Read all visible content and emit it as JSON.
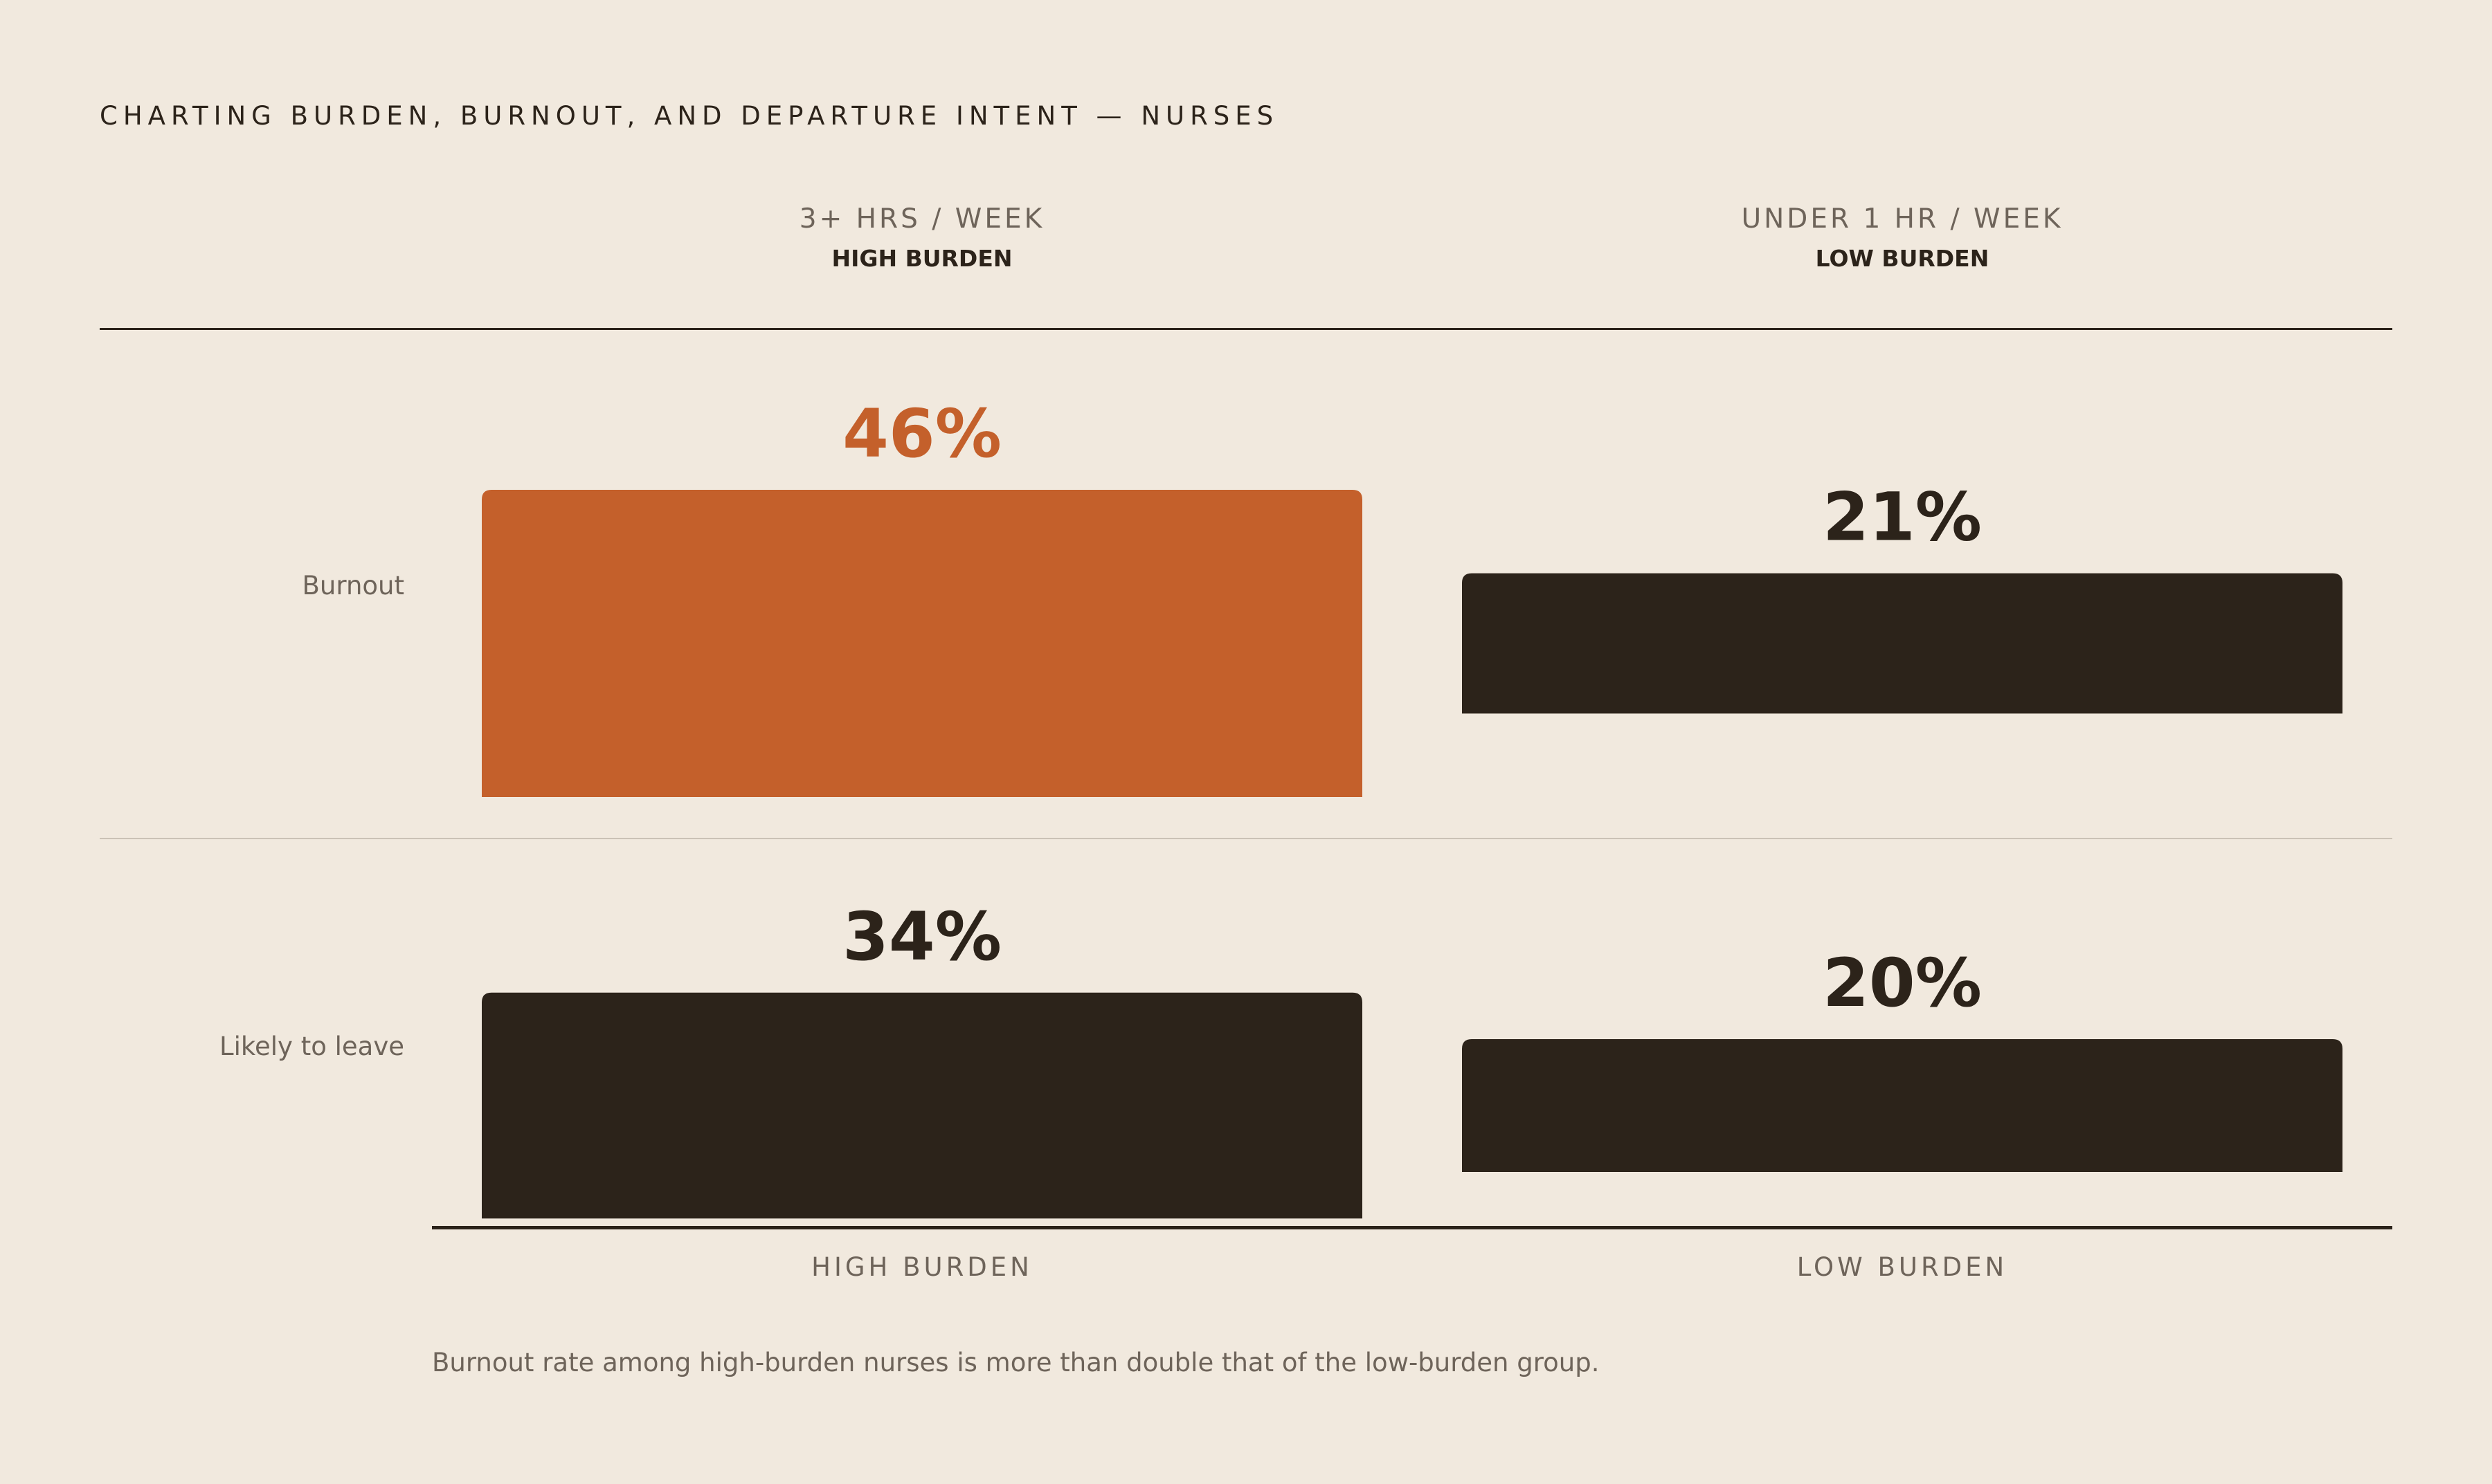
{
  "title": "CHARTING BURDEN, BURNOUT, AND DEPARTURE INTENT — NURSES",
  "columns": [
    {
      "sub": "3+ HRS / WEEK",
      "main": "HIGH BURDEN"
    },
    {
      "sub": "UNDER 1 HR / WEEK",
      "main": "LOW BURDEN"
    }
  ],
  "x_axis_labels": [
    "HIGH BURDEN",
    "LOW BURDEN"
  ],
  "footnote": "Burnout rate among high-burden nurses is more than double that of the low-burden group.",
  "colors": {
    "highlight": "#C4602B",
    "bar": "#2C231A",
    "value_text": "#2C231A",
    "background": "#F1E9DE"
  },
  "chart_data": {
    "type": "bar",
    "categories": [
      "HIGH BURDEN",
      "LOW BURDEN"
    ],
    "series": [
      {
        "name": "Burnout",
        "values": [
          46,
          21
        ],
        "labels": [
          "46%",
          "21%"
        ],
        "highlight": [
          true,
          false
        ]
      },
      {
        "name": "Likely to leave",
        "values": [
          34,
          20
        ],
        "labels": [
          "34%",
          "20%"
        ],
        "highlight": [
          false,
          false
        ]
      }
    ],
    "unit": "%",
    "title": "CHARTING BURDEN, BURNOUT, AND DEPARTURE INTENT — NURSES",
    "xlabel": "",
    "ylabel": "",
    "grid": false,
    "legend": "none"
  }
}
